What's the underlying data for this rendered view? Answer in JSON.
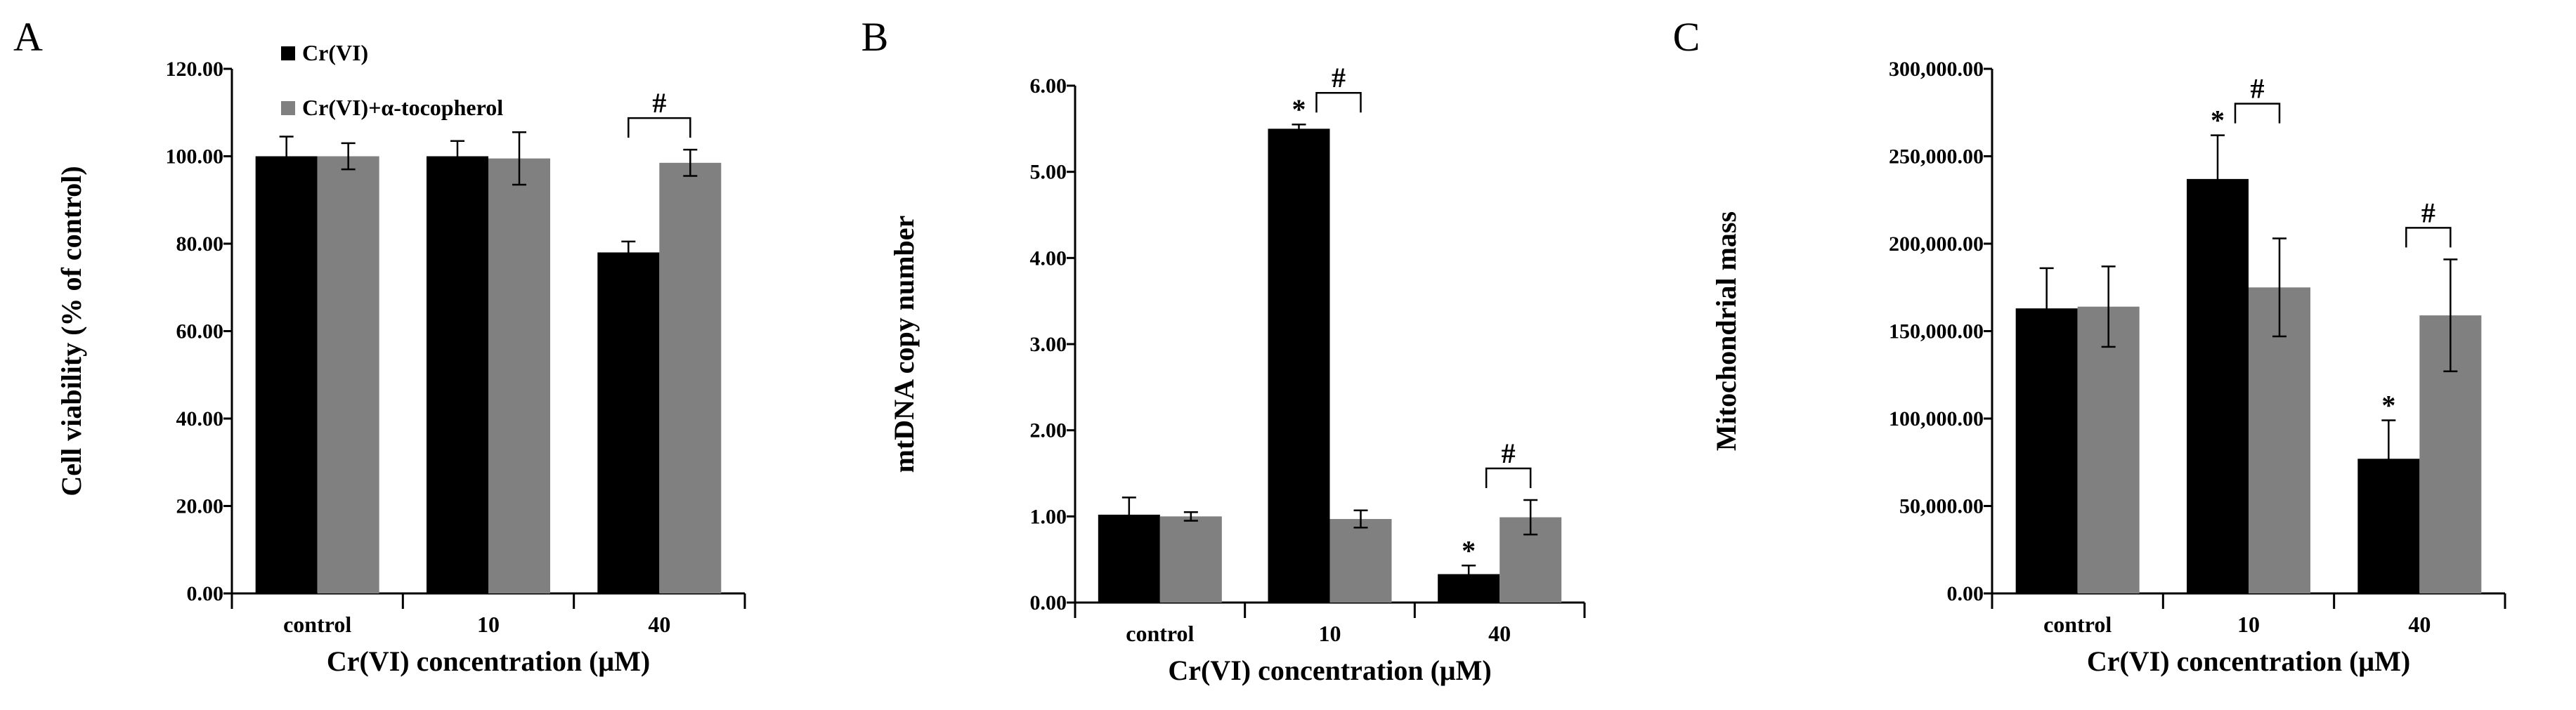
{
  "figure": {
    "legend": [
      {
        "label": "Cr(VI)",
        "color": "#000000"
      },
      {
        "label": "Cr(VI)+α-tocopherol",
        "color": "#808080"
      }
    ]
  },
  "chart_data": [
    {
      "type": "bar",
      "panel_label": "A",
      "xlabel": "Cr(VI) concentration (μM)",
      "ylabel": "Cell viability (% of control)",
      "categories": [
        "control",
        "10",
        "40"
      ],
      "ylim": [
        0,
        120
      ],
      "yticks": [
        "0.00",
        "20.00",
        "40.00",
        "60.00",
        "80.00",
        "100.00",
        "120.00"
      ],
      "series": [
        {
          "name": "Cr(VI)",
          "color": "#000000",
          "values": [
            100,
            100,
            78
          ],
          "errors": [
            4.5,
            3.5,
            2.5
          ]
        },
        {
          "name": "Cr(VI)+α-tocopherol",
          "color": "#808080",
          "values": [
            100,
            99.5,
            98.5
          ],
          "errors": [
            3,
            6,
            3
          ]
        }
      ],
      "annotations": [
        {
          "text": "#",
          "kind": "bracket",
          "category": 2
        }
      ]
    },
    {
      "type": "bar",
      "panel_label": "B",
      "xlabel": "Cr(VI) concentration (μM)",
      "ylabel": "mtDNA copy number",
      "categories": [
        "control",
        "10",
        "40"
      ],
      "ylim": [
        0,
        6
      ],
      "yticks": [
        "0.00",
        "1.00",
        "2.00",
        "3.00",
        "4.00",
        "5.00",
        "6.00"
      ],
      "series": [
        {
          "name": "Cr(VI)",
          "color": "#000000",
          "values": [
            1.02,
            5.5,
            0.33
          ],
          "errors": [
            0.2,
            0.05,
            0.1
          ]
        },
        {
          "name": "Cr(VI)+α-tocopherol",
          "color": "#808080",
          "values": [
            1.0,
            0.97,
            0.99
          ],
          "errors": [
            0.05,
            0.1,
            0.2
          ]
        }
      ],
      "annotations": [
        {
          "text": "*",
          "kind": "star",
          "category": 1
        },
        {
          "text": "#",
          "kind": "bracket",
          "category": 1
        },
        {
          "text": "*",
          "kind": "star",
          "category": 2
        },
        {
          "text": "#",
          "kind": "bracket",
          "category": 2
        }
      ]
    },
    {
      "type": "bar",
      "panel_label": "C",
      "xlabel": "Cr(VI) concentration (μM)",
      "ylabel": "Mitochondrial mass",
      "categories": [
        "control",
        "10",
        "40"
      ],
      "ylim": [
        0,
        300000
      ],
      "yticks": [
        "0.00",
        "50,000.00",
        "100,000.00",
        "150,000.00",
        "200,000.00",
        "250,000.00",
        "300,000.00"
      ],
      "series": [
        {
          "name": "Cr(VI)",
          "color": "#000000",
          "values": [
            163000,
            237000,
            77000
          ],
          "errors": [
            23000,
            25000,
            22000
          ]
        },
        {
          "name": "Cr(VI)+α-tocopherol",
          "color": "#808080",
          "values": [
            164000,
            175000,
            159000
          ],
          "errors": [
            23000,
            28000,
            32000
          ]
        }
      ],
      "annotations": [
        {
          "text": "*",
          "kind": "star",
          "category": 1
        },
        {
          "text": "#",
          "kind": "bracket",
          "category": 1
        },
        {
          "text": "*",
          "kind": "star",
          "category": 2
        },
        {
          "text": "#",
          "kind": "bracket",
          "category": 2
        }
      ]
    }
  ]
}
